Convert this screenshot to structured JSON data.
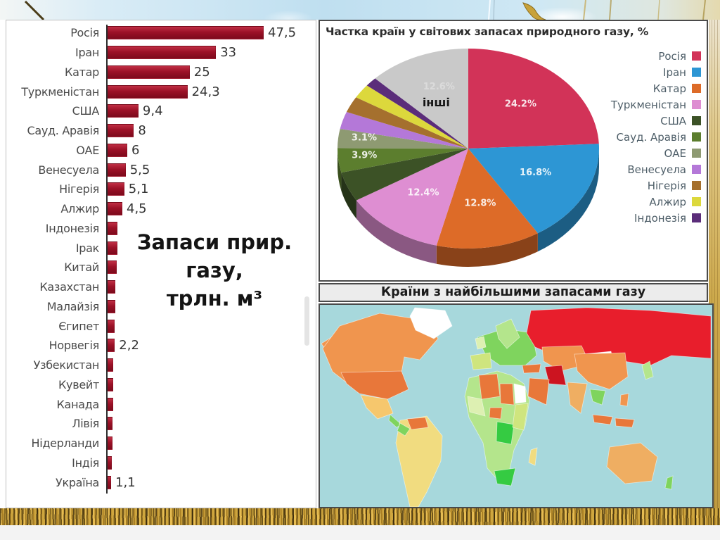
{
  "background": {
    "sky_color": "#bfdff0",
    "wheat_gold": "#cfa63e",
    "bottom_margin": "#f3f3f3"
  },
  "chart_data": [
    {
      "type": "bar",
      "orientation": "horizontal",
      "title": "Запаси прир. газу, трлн. м³",
      "title_lines": [
        "Запаси прир. газу,",
        "трлн. м³"
      ],
      "bar_color": "#9c1127",
      "xlim": [
        0,
        50
      ],
      "grid": false,
      "categories": [
        "Росія",
        "Іран",
        "Катар",
        "Туркменістан",
        "США",
        "Сауд. Аравія",
        "ОАЕ",
        "Венесуела",
        "Нігерія",
        "Алжир",
        "Індонезія",
        "Ірак",
        "Китай",
        "Казахстан",
        "Малайзія",
        "Єгипет",
        "Норвегія",
        "Узбекистан",
        "Кувейт",
        "Канада",
        "Лівія",
        "Нідерланди",
        "Індія",
        "Україна"
      ],
      "values": [
        47.5,
        33,
        25,
        24.3,
        9.4,
        8,
        6,
        5.5,
        5.1,
        4.5,
        3.0,
        2.9,
        2.8,
        2.4,
        2.4,
        2.2,
        2.2,
        1.8,
        1.8,
        1.7,
        1.5,
        1.4,
        1.2,
        1.1
      ],
      "value_labels": [
        "47,5",
        "33",
        "25",
        "24,3",
        "9,4",
        "8",
        "6",
        "5,5",
        "5,1",
        "4,5",
        "",
        "",
        "",
        "",
        "",
        "",
        "2,2",
        "",
        "",
        "",
        "",
        "",
        "",
        "1,1"
      ]
    },
    {
      "type": "pie",
      "style": "3d",
      "title": "Частка країн у світових запасах природного газу, %",
      "legend_position": "right",
      "slices": [
        {
          "name": "Росія",
          "value": 24.2,
          "label": "24.2%",
          "color": "#d23358"
        },
        {
          "name": "Іран",
          "value": 16.8,
          "label": "16.8%",
          "color": "#2d96d4"
        },
        {
          "name": "Катар",
          "value": 12.8,
          "label": "12.8%",
          "color": "#dd6b28"
        },
        {
          "name": "Туркменістан",
          "value": 12.4,
          "label": "12.4%",
          "color": "#de8ed2"
        },
        {
          "name": "США",
          "value": 4.8,
          "label": "",
          "color": "#3c5226"
        },
        {
          "name": "Сауд. Аравія",
          "value": 3.9,
          "label": "3.9%",
          "color": "#5c7e2e"
        },
        {
          "name": "ОАЕ",
          "value": 3.1,
          "label": "3.1%",
          "color": "#8e9a72"
        },
        {
          "name": "Венесуела",
          "value": 2.8,
          "label": "",
          "color": "#b478d8"
        },
        {
          "name": "Нігерія",
          "value": 2.6,
          "label": "",
          "color": "#a5702e"
        },
        {
          "name": "Алжир",
          "value": 2.3,
          "label": "",
          "color": "#dcd83c"
        },
        {
          "name": "Індонезія",
          "value": 1.5,
          "label": "",
          "color": "#5b2d7a"
        },
        {
          "name": "інші",
          "value": 12.6,
          "label": "12.6%",
          "color": "#c9c9c9",
          "label_faint": true,
          "name_on_slice": true
        }
      ],
      "legend": [
        "Росія",
        "Іран",
        "Катар",
        "Туркменістан",
        "США",
        "Сауд. Аравія",
        "ОАЕ",
        "Венесуела",
        "Нігерія",
        "Алжир",
        "Індонезія"
      ]
    },
    {
      "type": "heatmap",
      "subtype": "world-choropleth",
      "title": "Країни з найбільшими запасами газу",
      "palette": {
        "ocean": "#a7d8dc",
        "red": "#e81e2c",
        "red_dark": "#cc1420",
        "orange": "#f0954e",
        "orange_deep": "#e8773a",
        "amber": "#f6c76d",
        "yellow": "#f1dc80",
        "tan": "#efae62",
        "green_bright": "#35cb42",
        "green_mid": "#7fd45e",
        "green_light": "#b4e58c",
        "green_pale": "#ddf0b2",
        "olive": "#cfe57e",
        "white_land": "#ffffff"
      },
      "regions": [
        {
          "name": "Росія",
          "color_key": "red"
        },
        {
          "name": "Іран",
          "color_key": "red_dark"
        },
        {
          "name": "Канада",
          "color_key": "orange"
        },
        {
          "name": "США",
          "color_key": "orange_deep"
        },
        {
          "name": "Мексика",
          "color_key": "amber"
        },
        {
          "name": "Гренландія",
          "color_key": "white_land"
        },
        {
          "name": "Венесуела",
          "color_key": "orange_deep"
        },
        {
          "name": "Південна Америка",
          "color_key": "yellow"
        },
        {
          "name": "Казахстан",
          "color_key": "orange"
        },
        {
          "name": "Сауд. Аравія",
          "color_key": "orange_deep"
        },
        {
          "name": "Алжир",
          "color_key": "orange_deep"
        },
        {
          "name": "Лівія",
          "color_key": "orange_deep"
        },
        {
          "name": "Нігерія",
          "color_key": "orange_deep"
        },
        {
          "name": "Центральна Африка",
          "color_key": "green_bright"
        },
        {
          "name": "Китай",
          "color_key": "orange"
        },
        {
          "name": "Індія",
          "color_key": "tan"
        },
        {
          "name": "Індонезія",
          "color_key": "orange_deep"
        },
        {
          "name": "Австралія",
          "color_key": "tan"
        }
      ]
    }
  ]
}
